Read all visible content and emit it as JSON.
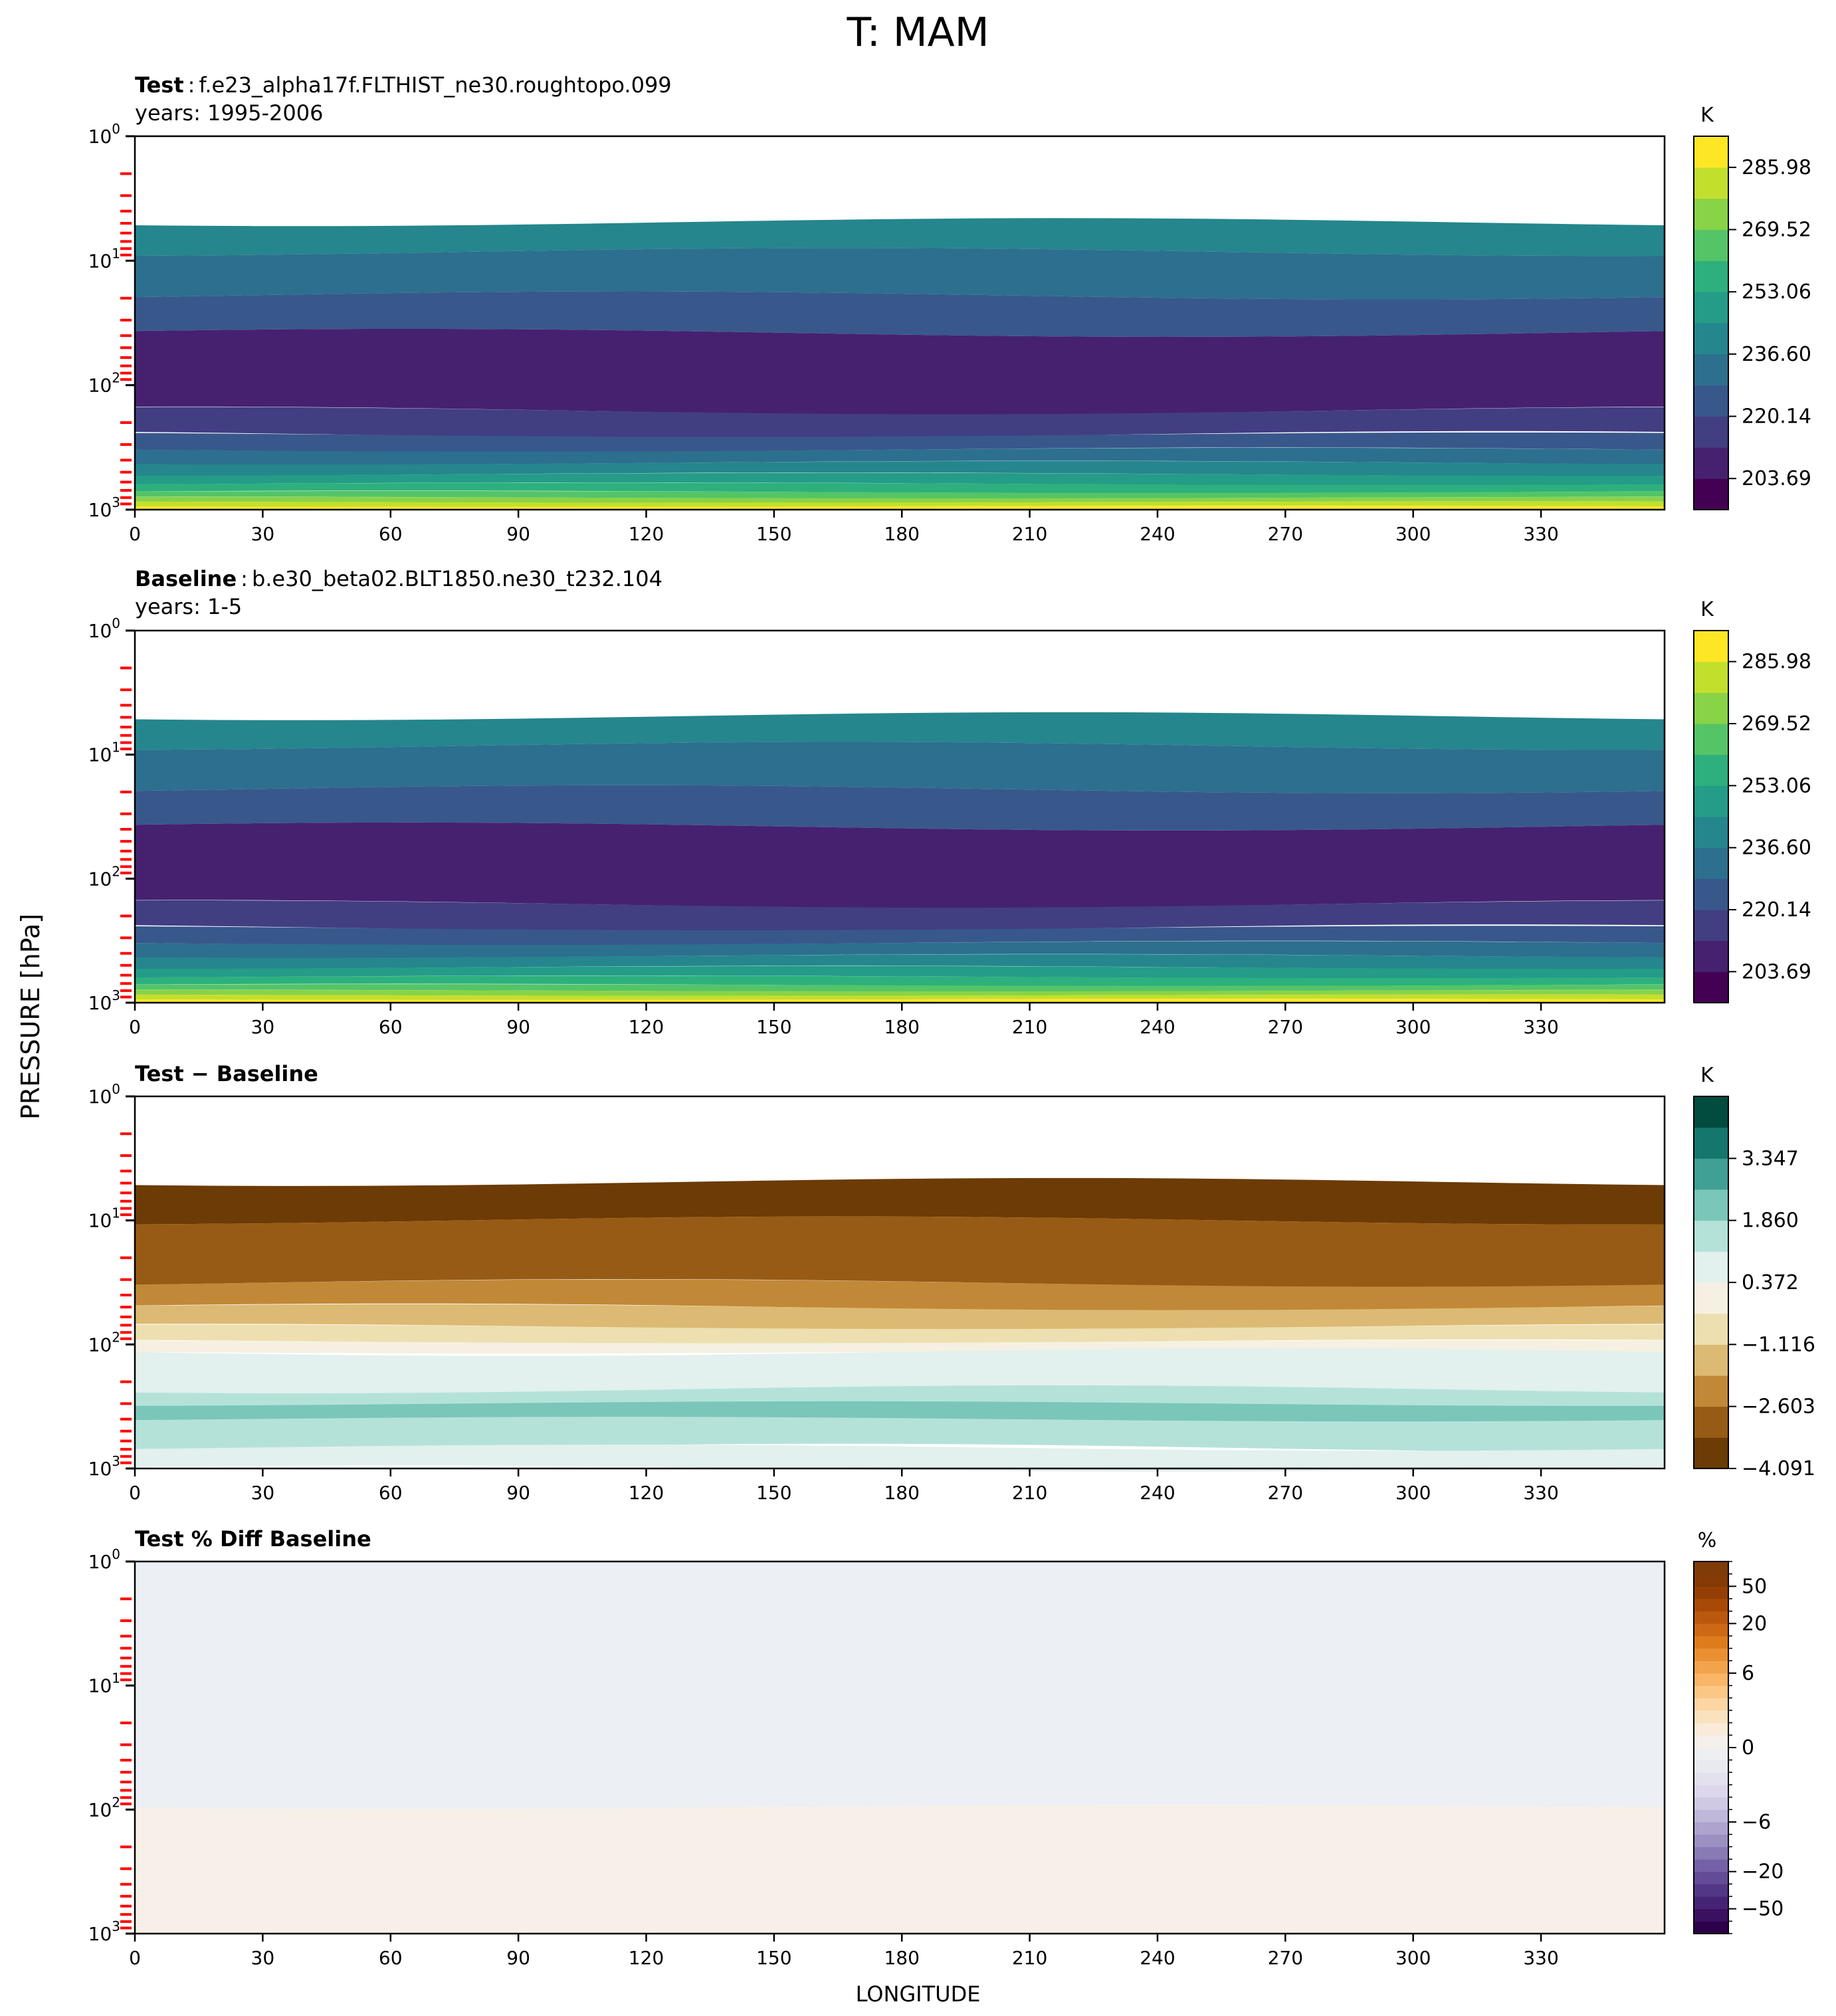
{
  "figure": {
    "title": "T: MAM",
    "xlabel": "LONGITUDE",
    "ylabel": "PRESSURE [hPa]"
  },
  "panels": [
    {
      "label": "Test",
      "sep": ":",
      "case": "f.e23_alpha17f.FLTHIST_ne30.roughtopo.099",
      "years": "years: 1995-2006"
    },
    {
      "label": "Baseline",
      "sep": ":",
      "case": "b.e30_beta02.BLT1850.ne30_t232.104",
      "years": "years: 1-5"
    },
    {
      "label": "Test − Baseline",
      "sep": "",
      "case": "",
      "years": ""
    },
    {
      "label": "Test % Diff Baseline",
      "sep": "",
      "case": "",
      "years": ""
    }
  ],
  "chart_data": [
    {
      "type": "heatmap",
      "title": "Test : f.e23_alpha17f.FLTHIST_ne30.roughtopo.099",
      "subtitle": "years: 1995-2006",
      "x": {
        "ticks": [
          0,
          30,
          60,
          90,
          120,
          150,
          180,
          210,
          240,
          270,
          300,
          330
        ],
        "lim": [
          0,
          359
        ]
      },
      "y": {
        "scale": "log",
        "inverted": true,
        "ticks": [
          "10^0",
          "10^1",
          "10^2",
          "10^3"
        ],
        "lim": [
          1,
          1000
        ]
      },
      "colorbar": {
        "unit": "K",
        "cmap": "viridis",
        "ticks": [
          285.98,
          269.52,
          253.06,
          236.6,
          220.14,
          203.69
        ],
        "tick_labels": [
          "285.98",
          "269.52",
          "253.06",
          "236.60",
          "220.14",
          "203.69"
        ],
        "range": [
          195.46,
          294.21
        ]
      },
      "regions": [
        {
          "p_range": [
            1,
            4.9
          ],
          "value": null,
          "note": "no data (white)"
        },
        {
          "p_range": [
            4.9,
            8.5
          ],
          "value": 240.7
        },
        {
          "p_range": [
            8.5,
            19
          ],
          "value": 232.5
        },
        {
          "p_range": [
            19,
            38
          ],
          "value": 224.3
        },
        {
          "p_range": [
            38,
            160
          ],
          "value": 207.8
        },
        {
          "p_range": [
            160,
            250
          ],
          "value": 216.0
        },
        {
          "p_range": [
            250,
            330
          ],
          "value": 224.3
        },
        {
          "p_range": [
            330,
            420
          ],
          "value": 232.5
        },
        {
          "p_range": [
            420,
            520
          ],
          "value": 240.7
        },
        {
          "p_range": [
            520,
            620
          ],
          "value": 249.0
        },
        {
          "p_range": [
            620,
            720
          ],
          "value": 257.2
        },
        {
          "p_range": [
            720,
            800
          ],
          "value": 265.4
        },
        {
          "p_range": [
            800,
            870
          ],
          "value": 273.6
        },
        {
          "p_range": [
            870,
            940
          ],
          "value": 281.9
        },
        {
          "p_range": [
            940,
            1000
          ],
          "value": 290.1
        }
      ]
    },
    {
      "type": "heatmap",
      "title": "Baseline : b.e30_beta02.BLT1850.ne30_t232.104",
      "subtitle": "years: 1-5",
      "x": {
        "ticks": [
          0,
          30,
          60,
          90,
          120,
          150,
          180,
          210,
          240,
          270,
          300,
          330
        ],
        "lim": [
          0,
          359
        ]
      },
      "y": {
        "scale": "log",
        "inverted": true,
        "ticks": [
          "10^0",
          "10^1",
          "10^2",
          "10^3"
        ],
        "lim": [
          1,
          1000
        ]
      },
      "colorbar": {
        "unit": "K",
        "cmap": "viridis",
        "ticks": [
          285.98,
          269.52,
          253.06,
          236.6,
          220.14,
          203.69
        ],
        "tick_labels": [
          "285.98",
          "269.52",
          "253.06",
          "236.60",
          "220.14",
          "203.69"
        ],
        "range": [
          195.46,
          294.21
        ]
      },
      "regions": [
        {
          "p_range": [
            1,
            4.9
          ],
          "value": null,
          "note": "no data (white)"
        },
        {
          "p_range": [
            4.9,
            8.5
          ],
          "value": 240.7
        },
        {
          "p_range": [
            8.5,
            19
          ],
          "value": 232.5
        },
        {
          "p_range": [
            19,
            38
          ],
          "value": 224.3
        },
        {
          "p_range": [
            38,
            160
          ],
          "value": 207.8
        },
        {
          "p_range": [
            160,
            250
          ],
          "value": 216.0
        },
        {
          "p_range": [
            250,
            330
          ],
          "value": 224.3
        },
        {
          "p_range": [
            330,
            420
          ],
          "value": 232.5
        },
        {
          "p_range": [
            420,
            520
          ],
          "value": 240.7
        },
        {
          "p_range": [
            520,
            620
          ],
          "value": 249.0
        },
        {
          "p_range": [
            620,
            720
          ],
          "value": 257.2
        },
        {
          "p_range": [
            720,
            800
          ],
          "value": 265.4
        },
        {
          "p_range": [
            800,
            870
          ],
          "value": 273.6
        },
        {
          "p_range": [
            870,
            940
          ],
          "value": 281.9
        },
        {
          "p_range": [
            940,
            1000
          ],
          "value": 290.1
        }
      ]
    },
    {
      "type": "heatmap",
      "title": "Test − Baseline",
      "x": {
        "ticks": [
          0,
          30,
          60,
          90,
          120,
          150,
          180,
          210,
          240,
          270,
          300,
          330
        ],
        "lim": [
          0,
          359
        ]
      },
      "y": {
        "scale": "log",
        "inverted": true,
        "ticks": [
          "10^0",
          "10^1",
          "10^2",
          "10^3"
        ],
        "lim": [
          1,
          1000
        ]
      },
      "colorbar": {
        "unit": "K",
        "cmap": "BrBG",
        "ticks": [
          3.347,
          1.86,
          0.372,
          -1.116,
          -2.603,
          -4.091
        ],
        "tick_labels": [
          "3.347",
          "1.860",
          "0.372",
          "−1.116",
          "−2.603",
          "−4.091"
        ],
        "range": [
          -4.091,
          4.835
        ]
      },
      "regions": [
        {
          "p_range": [
            1,
            4.9
          ],
          "value": null,
          "note": "no data (white)"
        },
        {
          "p_range": [
            4.9,
            10
          ],
          "value": -3.7,
          "note": "deepest brown near model top, thickest near 0 and 210-359"
        },
        {
          "p_range": [
            10,
            32
          ],
          "value": -2.9
        },
        {
          "p_range": [
            32,
            50
          ],
          "value": -2.1
        },
        {
          "p_range": [
            50,
            72
          ],
          "value": -1.4
        },
        {
          "p_range": [
            72,
            95
          ],
          "value": -0.6
        },
        {
          "p_range": [
            95,
            115
          ],
          "value": 0.1
        },
        {
          "p_range": [
            115,
            230
          ],
          "value": 0.9
        },
        {
          "p_range": [
            230,
            680
          ],
          "value": 1.6
        },
        {
          "p_range": [
            300,
            400
          ],
          "value": 2.4,
          "note": "local maximum near longitude 150-210"
        },
        {
          "p_range": [
            680,
            1000
          ],
          "value": 0.9
        }
      ]
    },
    {
      "type": "heatmap",
      "title": "Test % Diff Baseline",
      "x": {
        "ticks": [
          0,
          30,
          60,
          90,
          120,
          150,
          180,
          210,
          240,
          270,
          300,
          330
        ],
        "lim": [
          0,
          359
        ]
      },
      "y": {
        "scale": "log",
        "inverted": true,
        "ticks": [
          "10^0",
          "10^1",
          "10^2",
          "10^3"
        ],
        "lim": [
          1,
          1000
        ]
      },
      "colorbar": {
        "unit": "%",
        "cmap": "PuOr_r",
        "ticks": [
          50,
          20,
          6,
          0,
          -6,
          -20,
          -50
        ],
        "tick_labels": [
          "50",
          "20",
          "6",
          "0",
          "−6",
          "−20",
          "−50"
        ],
        "levels": [
          -100,
          -75,
          -50,
          -40,
          -30,
          -20,
          -15,
          -10,
          -8,
          -6,
          -5,
          -4,
          -3,
          -2,
          -1,
          0,
          1,
          2,
          3,
          4,
          5,
          6,
          8,
          10,
          15,
          20,
          30,
          40,
          50,
          75,
          100
        ]
      },
      "regions": [
        {
          "p_range": [
            1,
            95
          ],
          "value": -0.5
        },
        {
          "p_range": [
            95,
            1000
          ],
          "value": 0.5
        }
      ]
    }
  ],
  "colors": {
    "viridis": [
      "#440154",
      "#472d7b",
      "#3b528b",
      "#2c728e",
      "#21918c",
      "#28ae80",
      "#5ec962",
      "#addc30",
      "#fde725"
    ],
    "brbg": [
      "#6c3b06",
      "#9b5e17",
      "#c9913f",
      "#e3c986",
      "#f5ebc8",
      "#f5f5f5",
      "#cbebe5",
      "#8cd1c3",
      "#4aa89d",
      "#167a72",
      "#014c3e"
    ],
    "pct": [
      "#2d004b",
      "#3f1a6b",
      "#543888",
      "#6c56a0",
      "#8b7db8",
      "#a89bc9",
      "#c2bbdc",
      "#d9d4ea",
      "#e6e3f0",
      "#eceef3",
      "#f7f1e9",
      "#fbe4c4",
      "#fdd29a",
      "#fbb86a",
      "#f19c43",
      "#e07e1d",
      "#c86010",
      "#a94b07",
      "#8a3a04",
      "#7f3b08"
    ],
    "pct_upper_fill": "#eceff4",
    "pct_lower_fill": "#f7f0e8",
    "axis_tick_red": "#ff0000"
  }
}
